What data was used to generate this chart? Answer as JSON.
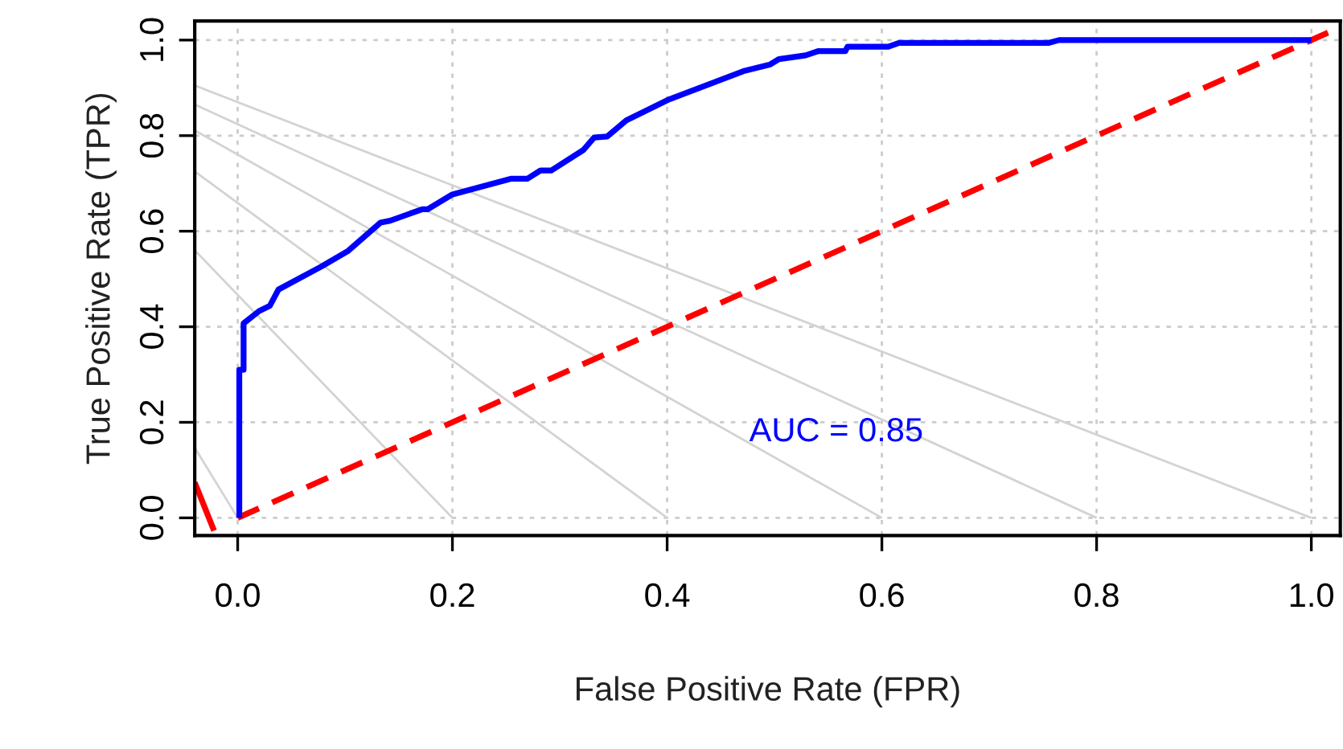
{
  "chart_data": {
    "type": "line",
    "xlabel": "False Positive Rate (FPR)",
    "ylabel": "True Positive Rate (TPR)",
    "xlim": [
      -0.04,
      1.027
    ],
    "ylim": [
      -0.037,
      1.04
    ],
    "xticks": [
      {
        "value": 0,
        "label": "0.0"
      },
      {
        "value": 0.2,
        "label": "0.2"
      },
      {
        "value": 0.4,
        "label": "0.4"
      },
      {
        "value": 0.6,
        "label": "0.6"
      },
      {
        "value": 0.8,
        "label": "0.8"
      },
      {
        "value": 1,
        "label": "1.0"
      }
    ],
    "yticks": [
      {
        "value": 0,
        "label": "0.0"
      },
      {
        "value": 0.2,
        "label": "0.2"
      },
      {
        "value": 0.4,
        "label": "0.4"
      },
      {
        "value": 0.6,
        "label": "0.6"
      },
      {
        "value": 0.8,
        "label": "0.8"
      },
      {
        "value": 1,
        "label": "1.0"
      }
    ],
    "grid": true,
    "marker": "none",
    "annotations": [
      "AUC = 0.85"
    ],
    "series": [
      {
        "color": "#d3d3d3",
        "x": [
          -0.04,
          1.0
        ],
        "values": [
          0.905,
          0
        ]
      },
      {
        "color": "#d3d3d3",
        "x": [
          -0.04,
          0.8
        ],
        "values": [
          0.865,
          0
        ]
      },
      {
        "color": "#d3d3d3",
        "x": [
          -0.04,
          0.6
        ],
        "values": [
          0.811,
          0
        ]
      },
      {
        "color": "#d3d3d3",
        "x": [
          -0.04,
          0.4
        ],
        "values": [
          0.725,
          0
        ]
      },
      {
        "color": "#d3d3d3",
        "x": [
          -0.04,
          0.2
        ],
        "values": [
          0.56,
          0
        ]
      },
      {
        "color": "#d3d3d3",
        "x": [
          -0.04,
          0.0
        ],
        "values": [
          0.147,
          0
        ]
      },
      {
        "color": "#ff0000",
        "line_style": "dashed",
        "x": [
          0,
          1.027
        ],
        "values": [
          0,
          1.027
        ]
      },
      {
        "color": "#ff0000",
        "x": [
          -0.04,
          -0.022
        ],
        "values": [
          0.074,
          -0.027
        ]
      },
      {
        "color": "#0000ff",
        "x": [
          0.0015,
          0.0015,
          0.0055,
          0.0055,
          0.02,
          0.03,
          0.038,
          0.078,
          0.103,
          0.133,
          0.142,
          0.172,
          0.177,
          0.2,
          0.255,
          0.27,
          0.282,
          0.292,
          0.322,
          0.332,
          0.344,
          0.362,
          0.402,
          0.436,
          0.471,
          0.496,
          0.504,
          0.529,
          0.541,
          0.566,
          0.568,
          0.606,
          0.616,
          0.755,
          0.765,
          1.0
        ],
        "values": [
          0.0,
          0.31,
          0.31,
          0.407,
          0.433,
          0.444,
          0.478,
          0.526,
          0.559,
          0.618,
          0.622,
          0.646,
          0.646,
          0.677,
          0.71,
          0.71,
          0.727,
          0.727,
          0.77,
          0.796,
          0.798,
          0.832,
          0.876,
          0.905,
          0.935,
          0.949,
          0.96,
          0.968,
          0.977,
          0.977,
          0.986,
          0.986,
          0.994,
          0.994,
          1.0,
          1.0
        ]
      }
    ]
  }
}
